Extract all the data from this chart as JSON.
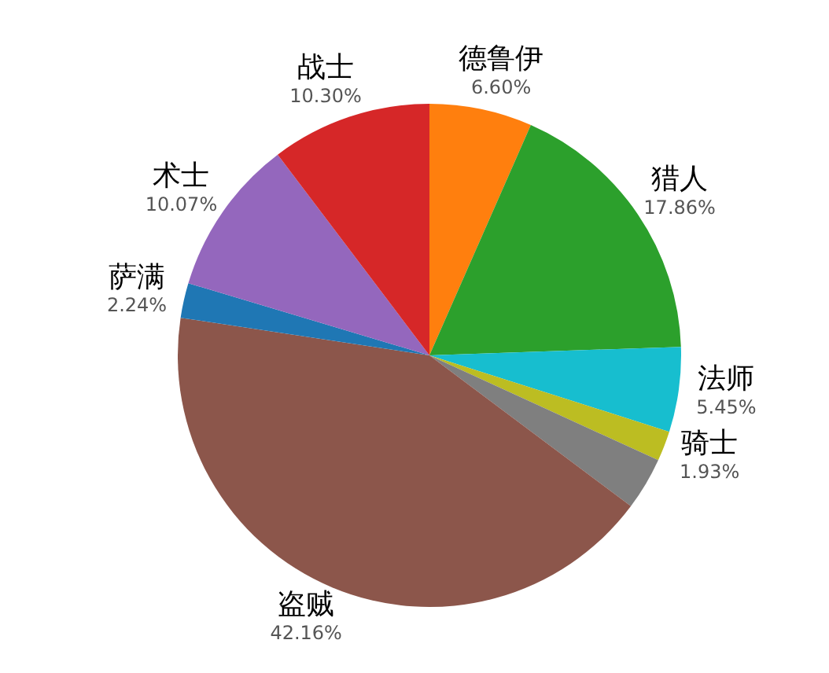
{
  "chart_data": {
    "type": "pie",
    "categories": [
      "德鲁伊",
      "猎人",
      "法师",
      "骑士",
      null,
      "盗贼",
      "萨满",
      "术士",
      "战士"
    ],
    "values": [
      6.6,
      17.86,
      5.45,
      1.93,
      3.39,
      42.16,
      2.24,
      10.07,
      10.3
    ],
    "colors": [
      "#ff7f0e",
      "#2ca02c",
      "#17becf",
      "#bcbd22",
      "#7f7f7f",
      "#8c564b",
      "#1f77b4",
      "#9467bd",
      "#d62728"
    ],
    "value_labels": [
      "6.60%",
      "17.86%",
      "5.45%",
      "1.93%",
      null,
      "42.16%",
      "2.24%",
      "10.07%",
      "10.30%"
    ]
  }
}
